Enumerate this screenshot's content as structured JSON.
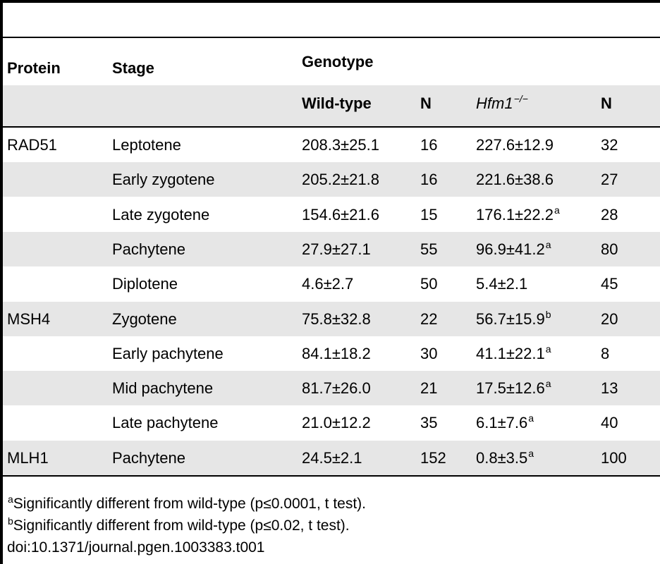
{
  "header": {
    "protein": "Protein",
    "stage": "Stage",
    "genotype": "Genotype",
    "wild_type": "Wild-type",
    "n": "N",
    "hfm1": "Hfm1",
    "hfm1_sup": "−/−"
  },
  "rows": [
    {
      "protein": "RAD51",
      "stage": "Leptotene",
      "wt": "208.3±25.1",
      "n1": "16",
      "mut": "227.6±12.9",
      "mut_sup": "",
      "n2": "32"
    },
    {
      "protein": "",
      "stage": "Early zygotene",
      "wt": "205.2±21.8",
      "n1": "16",
      "mut": "221.6±38.6",
      "mut_sup": "",
      "n2": "27"
    },
    {
      "protein": "",
      "stage": "Late zygotene",
      "wt": "154.6±21.6",
      "n1": "15",
      "mut": "176.1±22.2",
      "mut_sup": "a",
      "n2": "28"
    },
    {
      "protein": "",
      "stage": "Pachytene",
      "wt": "27.9±27.1",
      "n1": "55",
      "mut": "96.9±41.2",
      "mut_sup": "a",
      "n2": "80"
    },
    {
      "protein": "",
      "stage": "Diplotene",
      "wt": "4.6±2.7",
      "n1": "50",
      "mut": "5.4±2.1",
      "mut_sup": "",
      "n2": "45"
    },
    {
      "protein": "MSH4",
      "stage": "Zygotene",
      "wt": "75.8±32.8",
      "n1": "22",
      "mut": "56.7±15.9",
      "mut_sup": "b",
      "n2": "20"
    },
    {
      "protein": "",
      "stage": "Early pachytene",
      "wt": "84.1±18.2",
      "n1": "30",
      "mut": "41.1±22.1",
      "mut_sup": "a",
      "n2": "8"
    },
    {
      "protein": "",
      "stage": "Mid pachytene",
      "wt": "81.7±26.0",
      "n1": "21",
      "mut": "17.5±12.6",
      "mut_sup": "a",
      "n2": "13"
    },
    {
      "protein": "",
      "stage": "Late pachytene",
      "wt": "21.0±12.2",
      "n1": "35",
      "mut": "6.1±7.6",
      "mut_sup": "a",
      "n2": "40"
    },
    {
      "protein": "MLH1",
      "stage": "Pachytene",
      "wt": "24.5±2.1",
      "n1": "152",
      "mut": "0.8±3.5",
      "mut_sup": "a",
      "n2": "100"
    }
  ],
  "footnotes": {
    "a_mark": "a",
    "a_text": "Significantly different from wild-type (p≤0.0001, t test).",
    "b_mark": "b",
    "b_text": "Significantly different from wild-type (p≤0.02, t test).",
    "doi": "doi:10.1371/journal.pgen.1003383.t001"
  }
}
